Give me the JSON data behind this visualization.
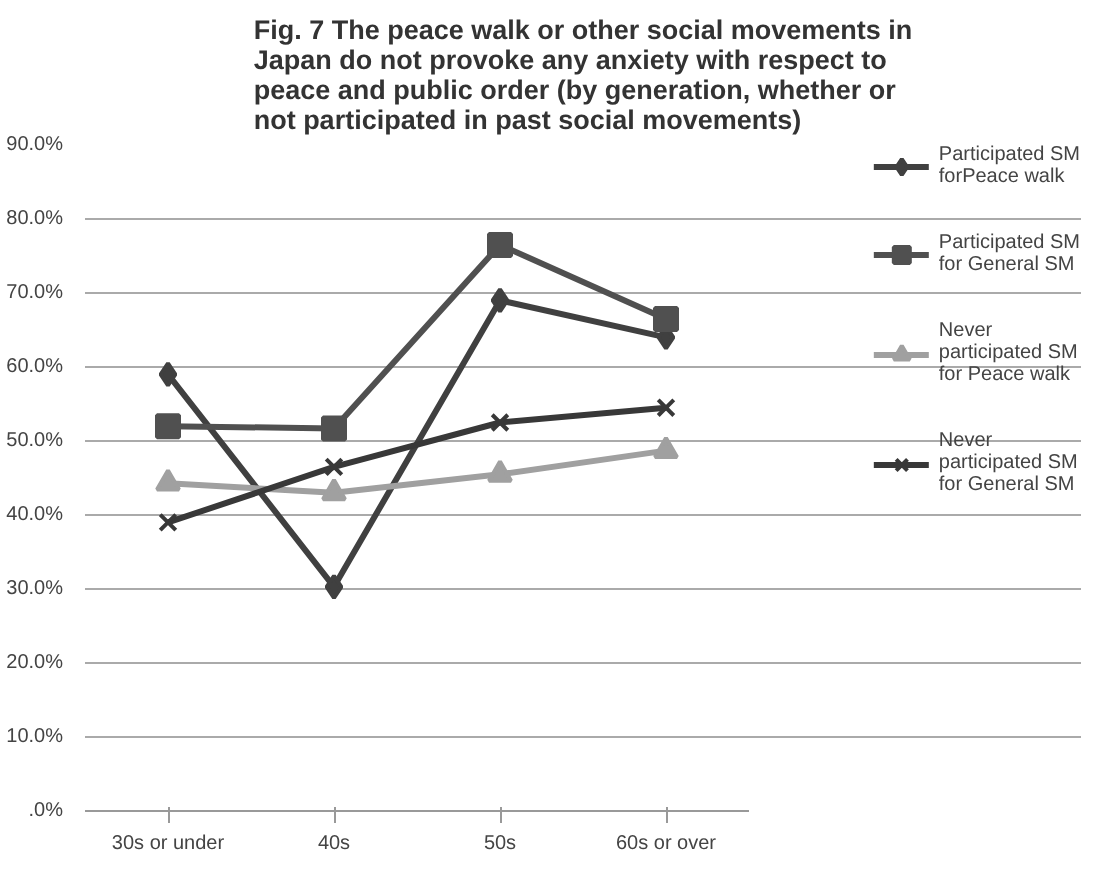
{
  "chart_data": {
    "type": "line",
    "title": "Fig. 7 The peace walk or other social movements in Japan do not provoke any anxiety with respect to peace and public order (by generation, whether or not participated in past social movements)",
    "categories": [
      "30s or under",
      "40s",
      "50s",
      "60s or over"
    ],
    "series": [
      {
        "name": "Participated SM forPeace walk",
        "color": "#404040",
        "marker": "diamond",
        "values": [
          59.0,
          30.3,
          69.0,
          64.0
        ]
      },
      {
        "name": "Participated SM for General SM",
        "color": "#505050",
        "marker": "square",
        "values": [
          52.0,
          51.7,
          76.5,
          66.5
        ]
      },
      {
        "name": "Never participated SM for Peace walk",
        "color": "#a0a0a0",
        "marker": "triangle",
        "values": [
          44.3,
          43.0,
          45.5,
          48.7
        ]
      },
      {
        "name": "Never participated SM for General SM",
        "color": "#383838",
        "marker": "cross",
        "values": [
          39.0,
          46.5,
          52.5,
          54.5
        ]
      }
    ],
    "ylim": [
      0,
      90
    ],
    "yticks": [
      {
        "value": 0,
        "label": ".0%"
      },
      {
        "value": 10,
        "label": "10.0%"
      },
      {
        "value": 20,
        "label": "20.0%"
      },
      {
        "value": 30,
        "label": "30.0%"
      },
      {
        "value": 40,
        "label": "40.0%"
      },
      {
        "value": 50,
        "label": "50.0%"
      },
      {
        "value": 60,
        "label": "60.0%"
      },
      {
        "value": 70,
        "label": "70.0%"
      },
      {
        "value": 80,
        "label": "80.0%"
      },
      {
        "value": 90,
        "label": "90.0%"
      }
    ],
    "grid": "y",
    "legend": "right",
    "line_style": "solid"
  }
}
